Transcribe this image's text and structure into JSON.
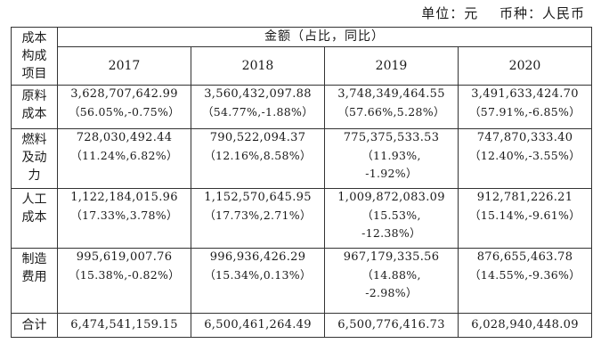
{
  "unit_line": {
    "unit": "单位：元",
    "currency": "币种：人民币"
  },
  "table": {
    "corner_label": "成本\n构成\n项目",
    "group_header": "金额（占比，同比）",
    "years": [
      "2017",
      "2018",
      "2019",
      "2020"
    ],
    "rows": [
      {
        "label": "原料\n成本",
        "cells": [
          {
            "amount": "3,628,707,642.99",
            "pct": "（56.05%,-0.75%）"
          },
          {
            "amount": "3,560,432,097.88",
            "pct": "（54.77%,-1.88%）"
          },
          {
            "amount": "3,748,349,464.55",
            "pct": "（57.66%,5.28%）"
          },
          {
            "amount": "3,491,633,424.70",
            "pct": "（57.91%,-6.85%）"
          }
        ]
      },
      {
        "label": "燃料\n及动\n力",
        "cells": [
          {
            "amount": "728,030,492.44",
            "pct": "（11.24%,6.82%）"
          },
          {
            "amount": "790,522,094.37",
            "pct": "（12.16%,8.58%）"
          },
          {
            "amount": "775,375,533.53",
            "pct": "（11.93%,\n-1.92%）"
          },
          {
            "amount": "747,870,333.40",
            "pct": "（12.40%,-3.55%）"
          }
        ]
      },
      {
        "label": "人工\n成本",
        "cells": [
          {
            "amount": "1,122,184,015.96",
            "pct": "（17.33%,3.78%）"
          },
          {
            "amount": "1,152,570,645.95",
            "pct": "（17.73%,2.71%）"
          },
          {
            "amount": "1,009,872,083.09",
            "pct": "（15.53%,\n-12.38%）"
          },
          {
            "amount": "912,781,226.21",
            "pct": "（15.14%,-9.61%）"
          }
        ]
      },
      {
        "label": "制造\n费用",
        "cells": [
          {
            "amount": "995,619,007.76",
            "pct": "（15.38%,-0.82%）"
          },
          {
            "amount": "996,936,426.29",
            "pct": "（15.34%,0.13%）"
          },
          {
            "amount": "967,179,335.56",
            "pct": "（14.88%,\n-2.98%）"
          },
          {
            "amount": "876,655,463.78",
            "pct": "（14.55%,-9.36%）"
          }
        ]
      }
    ],
    "total": {
      "label": "合计",
      "amounts": [
        "6,474,541,159.15",
        "6,500,461,264.49",
        "6,500,776,416.73",
        "6,028,940,448.09"
      ]
    }
  }
}
